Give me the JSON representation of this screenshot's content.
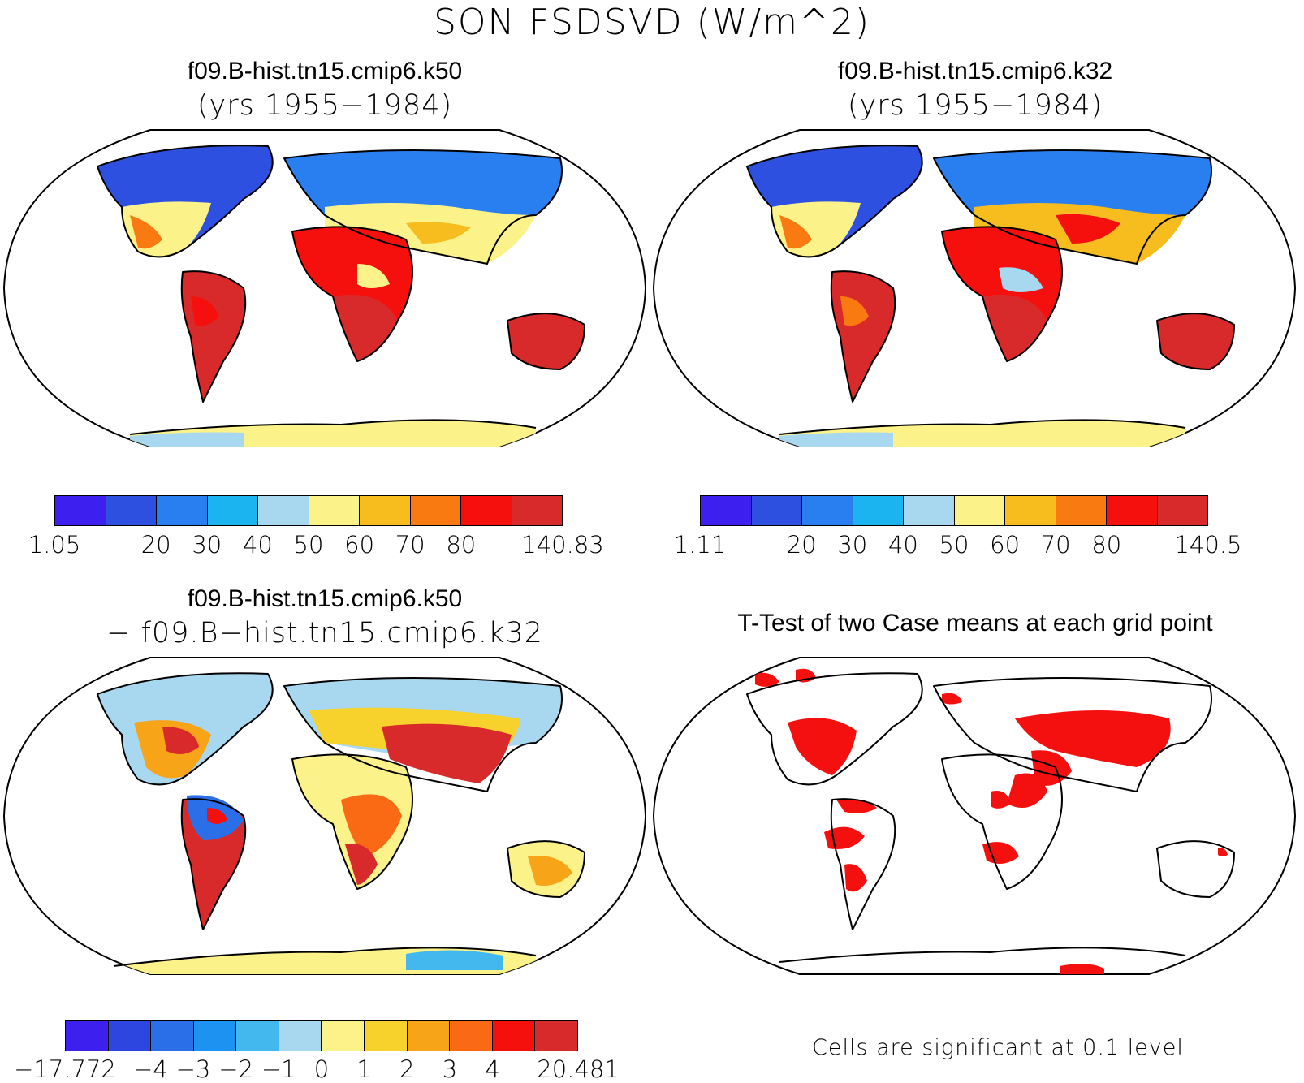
{
  "figure": {
    "title": "SON FSDSVD (W/m^2)"
  },
  "panels": [
    {
      "title": "f09.B-hist.tn15.cmip6.k50",
      "subtitle": "(yrs 1955−1984)"
    },
    {
      "title": "f09.B-hist.tn15.cmip6.k32",
      "subtitle": "(yrs 1955−1984)"
    },
    {
      "title": "f09.B-hist.tn15.cmip6.k50",
      "subtitle": "− f09.B−hist.tn15.cmip6.k32"
    },
    {
      "title": "T-Test of two Case means at each grid point",
      "footnote": "Cells are significant at 0.1 level"
    }
  ],
  "colorbars": [
    {
      "colors": [
        "#3d1ff0",
        "#2e50e0",
        "#2a7ff0",
        "#1cb4f0",
        "#a8d8f0",
        "#fbf28a",
        "#f7bc1e",
        "#f97a10",
        "#f5100d",
        "#d82a2a"
      ],
      "labels": [
        "1.05",
        "20",
        "30",
        "40",
        "50",
        "60",
        "70",
        "80",
        "140.83"
      ]
    },
    {
      "colors": [
        "#3d1ff0",
        "#2e50e0",
        "#2a7ff0",
        "#1cb4f0",
        "#a8d8f0",
        "#fbf28a",
        "#f7bc1e",
        "#f97a10",
        "#f5100d",
        "#d82a2a"
      ],
      "labels": [
        "1.11",
        "20",
        "30",
        "40",
        "50",
        "60",
        "70",
        "80",
        "140.5"
      ]
    },
    {
      "colors": [
        "#3d1ff0",
        "#2d46e0",
        "#2a6fe8",
        "#1c93f0",
        "#43b8ee",
        "#a8d8f0",
        "#fbf28a",
        "#f7d22c",
        "#f8a418",
        "#fa6a14",
        "#f5100d",
        "#d82a2a"
      ],
      "labels": [
        "−17.772",
        "−4",
        "−3",
        "−2",
        "−1",
        "0",
        "1",
        "2",
        "3",
        "4",
        "20.481"
      ]
    }
  ],
  "significance_color": "#f51010"
}
